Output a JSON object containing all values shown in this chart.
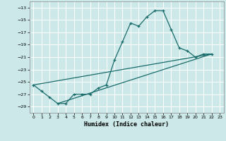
{
  "xlabel": "Humidex (Indice chaleur)",
  "bg_color": "#cce8e8",
  "grid_color": "#ffffff",
  "line_color": "#1a6b6b",
  "xlim": [
    -0.5,
    23.5
  ],
  "ylim": [
    -30.0,
    -12.0
  ],
  "xticks": [
    0,
    1,
    2,
    3,
    4,
    5,
    6,
    7,
    8,
    9,
    10,
    11,
    12,
    13,
    14,
    15,
    16,
    17,
    18,
    19,
    20,
    21,
    22,
    23
  ],
  "yticks": [
    -29,
    -27,
    -25,
    -23,
    -21,
    -19,
    -17,
    -15,
    -13
  ],
  "series1_x": [
    0,
    1,
    2,
    3,
    4,
    5,
    6,
    7,
    8,
    9,
    10,
    11,
    12,
    13,
    14,
    15,
    16,
    17,
    18,
    19,
    20,
    21,
    22
  ],
  "series1_y": [
    -25.5,
    -26.5,
    -27.5,
    -28.5,
    -28.5,
    -27.0,
    -27.0,
    -27.0,
    -26.0,
    -25.5,
    -21.5,
    -18.5,
    -15.5,
    -16.0,
    -14.5,
    -13.5,
    -13.5,
    -16.5,
    -19.5,
    -20.0,
    -21.0,
    -20.5,
    -20.5
  ],
  "series2_x": [
    0,
    22
  ],
  "series2_y": [
    -25.5,
    -20.5
  ],
  "series3_x": [
    3,
    22
  ],
  "series3_y": [
    -28.5,
    -20.5
  ]
}
